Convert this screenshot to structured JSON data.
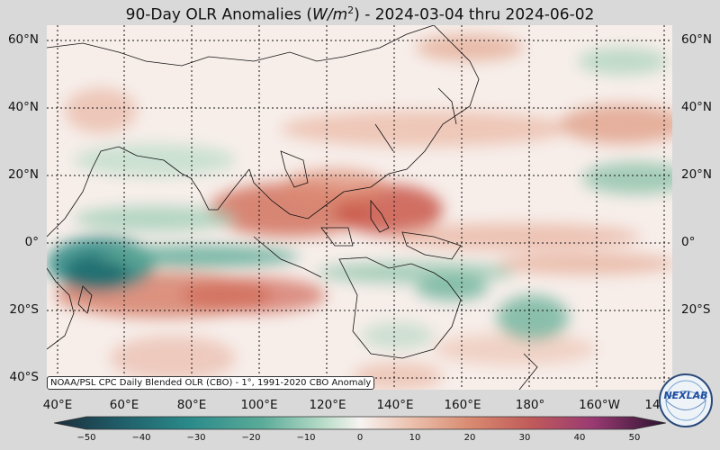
{
  "title": {
    "prefix": "90-Day OLR Anomalies (",
    "unit_base": "W/m",
    "unit_exp": "2",
    "suffix": ") - 2024-03-04 thru 2024-06-02"
  },
  "lat_labels": [
    "60°N",
    "40°N",
    "20°N",
    "0°",
    "20°S",
    "40°S"
  ],
  "lon_labels": [
    "40°E",
    "60°E",
    "80°E",
    "100°E",
    "120°E",
    "140°E",
    "160°E",
    "180°",
    "160°W",
    "14"
  ],
  "source_note": "NOAA/PSL CPC Daily Blended OLR (CBO) - 1°, 1991-2020 CBO Anomaly",
  "colorbar": {
    "ticks": [
      "−50",
      "−40",
      "−30",
      "−20",
      "−10",
      "0",
      "10",
      "20",
      "30",
      "40",
      "50"
    ],
    "range": [
      -50,
      50
    ],
    "colors": [
      "#1c2d3a",
      "#1f5a66",
      "#2a8a8a",
      "#5aab98",
      "#9dcdb5",
      "#f7f3f1",
      "#ecc3b0",
      "#d98a70",
      "#c05a5a",
      "#9a3a72",
      "#2b1230"
    ]
  },
  "logo_text": "NEXLAB",
  "map_colors": {
    "ocean_base": "#f7eeea",
    "positive": "#d97a62",
    "negative": "#2e8c86",
    "coast": "#111111"
  }
}
